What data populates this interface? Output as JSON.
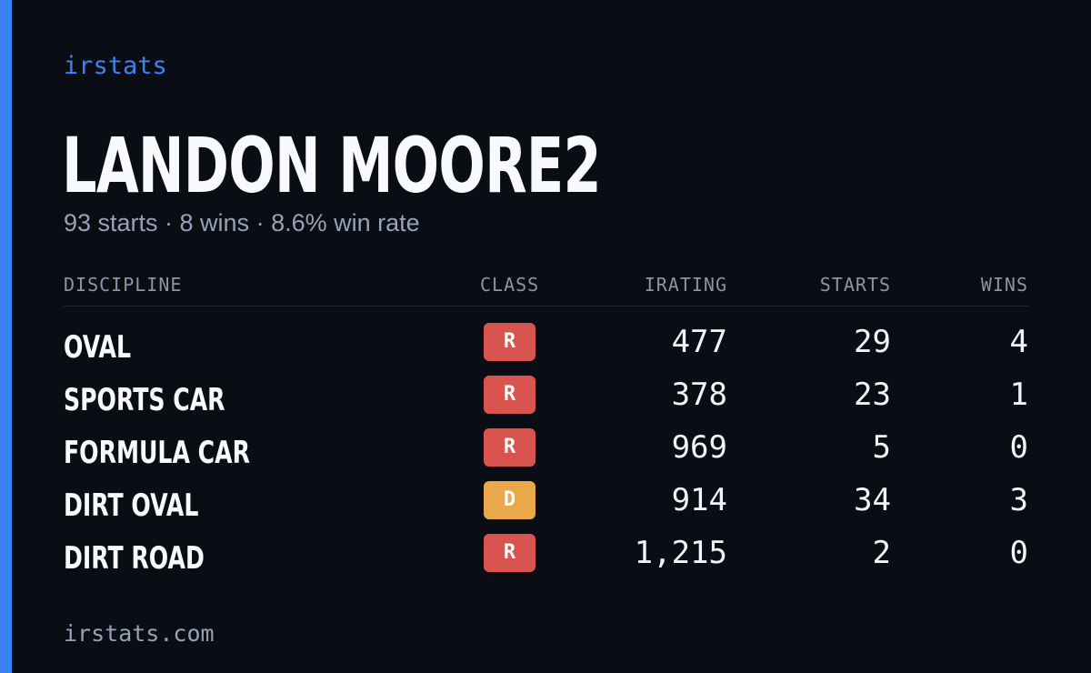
{
  "brand": "irstats",
  "driver_name": "LANDON MOORE2",
  "summary": "93 starts · 8 wins · 8.6% win rate",
  "table": {
    "headers": {
      "discipline": "DISCIPLINE",
      "class": "CLASS",
      "irating": "IRATING",
      "starts": "STARTS",
      "wins": "WINS"
    },
    "rows": [
      {
        "discipline": "OVAL",
        "class": "R",
        "class_color": "#d9534f",
        "irating": "477",
        "starts": "29",
        "wins": "4"
      },
      {
        "discipline": "SPORTS CAR",
        "class": "R",
        "class_color": "#d9534f",
        "irating": "378",
        "starts": "23",
        "wins": "1"
      },
      {
        "discipline": "FORMULA CAR",
        "class": "R",
        "class_color": "#d9534f",
        "irating": "969",
        "starts": "5",
        "wins": "0"
      },
      {
        "discipline": "DIRT OVAL",
        "class": "D",
        "class_color": "#e9a94b",
        "irating": "914",
        "starts": "34",
        "wins": "3"
      },
      {
        "discipline": "DIRT ROAD",
        "class": "R",
        "class_color": "#d9534f",
        "irating": "1,215",
        "starts": "2",
        "wins": "0"
      }
    ]
  },
  "footer": "irstats.com",
  "colors": {
    "accent": "#3b82f6",
    "background": "#0b0d14"
  }
}
